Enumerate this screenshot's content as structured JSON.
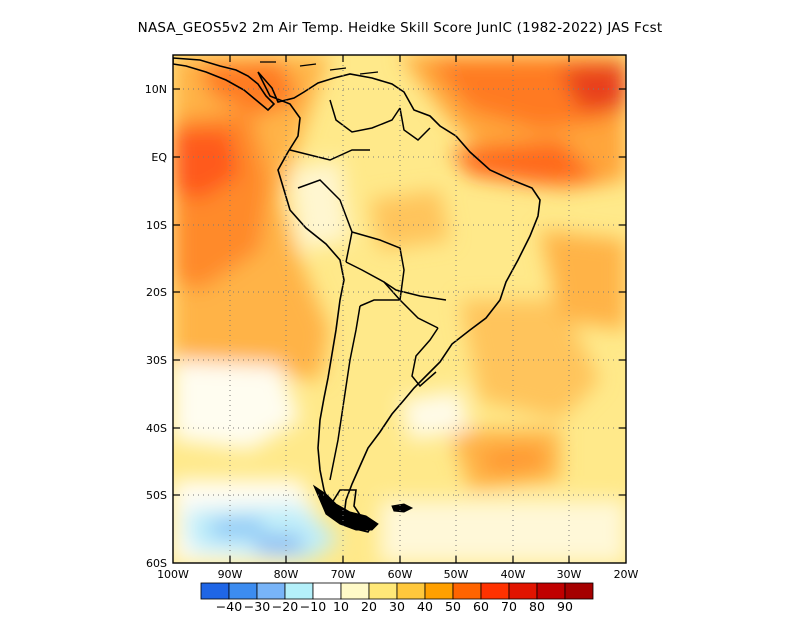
{
  "title": "NASA_GEOS5v2  2m Air Temp. Heidke Skill Score JunIC (1982-2022) JAS Fcst",
  "axes": {
    "lat_labels": [
      "10N",
      "EQ",
      "10S",
      "20S",
      "30S",
      "40S",
      "50S",
      "60S"
    ],
    "lon_labels": [
      "100W",
      "90W",
      "80W",
      "70W",
      "60W",
      "50W",
      "40W",
      "30W",
      "20W"
    ]
  },
  "colorbar": {
    "colors": [
      "#1f66e6",
      "#3c8cf0",
      "#78b4f8",
      "#b4f0fa",
      "#ffffff",
      "#fffac8",
      "#ffe878",
      "#ffc83c",
      "#ffa000",
      "#ff6400",
      "#ff3200",
      "#e11400",
      "#c00000",
      "#a50000"
    ],
    "labels": [
      "-40",
      "-30",
      "-20",
      "-10",
      "10",
      "20",
      "30",
      "40",
      "50",
      "60",
      "70",
      "80",
      "90"
    ]
  },
  "chart_data": {
    "type": "heatmap",
    "title": "NASA_GEOS5v2  2m Air Temp. Heidke Skill Score JunIC (1982-2022) JAS Fcst",
    "variable": "Heidke Skill Score",
    "region": "South America",
    "lon_range": [
      -100,
      -20
    ],
    "lat_range": [
      -60,
      15
    ],
    "color_levels": [
      -40,
      -30,
      -20,
      -10,
      10,
      20,
      30,
      40,
      50,
      60,
      70,
      80,
      90
    ]
  }
}
